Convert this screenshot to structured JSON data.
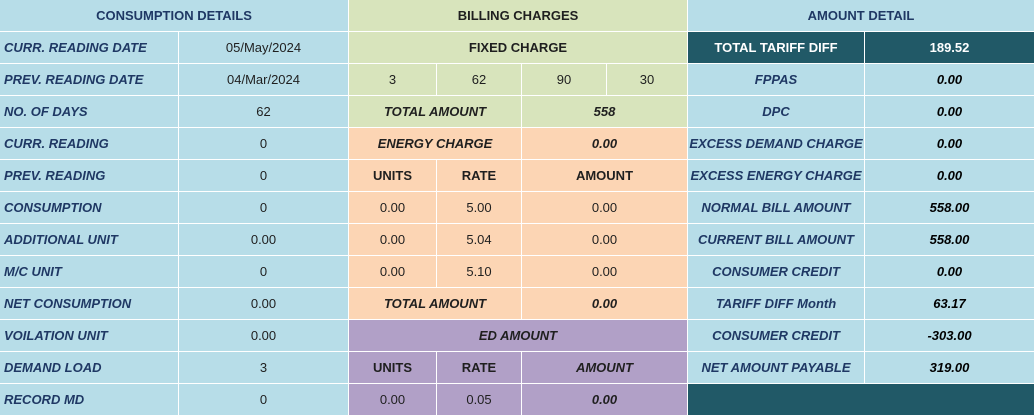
{
  "consumption": {
    "header": "CONSUMPTION DETAILS",
    "rows": [
      {
        "label": "CURR. READING DATE",
        "value": "05/May/2024"
      },
      {
        "label": "PREV. READING DATE",
        "value": "04/Mar/2024"
      },
      {
        "label": "NO. OF DAYS",
        "value": "62"
      },
      {
        "label": "CURR. READING",
        "value": "0"
      },
      {
        "label": "PREV. READING",
        "value": "0"
      },
      {
        "label": "CONSUMPTION",
        "value": "0"
      },
      {
        "label": "ADDITIONAL UNIT",
        "value": "0.00"
      },
      {
        "label": "M/C UNIT",
        "value": "0"
      },
      {
        "label": "NET CONSUMPTION",
        "value": "0.00"
      },
      {
        "label": "VOILATION UNIT",
        "value": "0.00"
      },
      {
        "label": "DEMAND LOAD",
        "value": "3"
      },
      {
        "label": "RECORD MD",
        "value": "0"
      }
    ]
  },
  "billing": {
    "header": "BILLING CHARGES",
    "fixed_charge_label": "FIXED CHARGE",
    "fixed_values": [
      "3",
      "62",
      "90",
      "30"
    ],
    "fixed_total_label": "TOTAL AMOUNT",
    "fixed_total_value": "558",
    "energy_charge_label": "ENERGY CHARGE",
    "energy_charge_value": "0.00",
    "energy_headers": {
      "units": "UNITS",
      "rate": "RATE",
      "amount": "AMOUNT"
    },
    "energy_rows": [
      {
        "units": "0.00",
        "rate": "5.00",
        "amount": "0.00"
      },
      {
        "units": "0.00",
        "rate": "5.04",
        "amount": "0.00"
      },
      {
        "units": "0.00",
        "rate": "5.10",
        "amount": "0.00"
      }
    ],
    "energy_total_label": "TOTAL AMOUNT",
    "energy_total_value": "0.00",
    "ed_amount_label": "ED AMOUNT",
    "ed_headers": {
      "units": "UNITS",
      "rate": "RATE",
      "amount": "AMOUNT"
    },
    "ed_row": {
      "units": "0.00",
      "rate": "0.05",
      "amount": "0.00"
    }
  },
  "amount": {
    "header": "AMOUNT DETAIL",
    "rows": [
      {
        "label": "TOTAL TARIFF DIFF",
        "value": "189.52"
      },
      {
        "label": "FPPAS",
        "value": "0.00"
      },
      {
        "label": "DPC",
        "value": "0.00"
      },
      {
        "label": "EXCESS DEMAND CHARGE",
        "value": "0.00"
      },
      {
        "label": "EXCESS ENERGY CHARGE",
        "value": "0.00"
      },
      {
        "label": "NORMAL BILL AMOUNT",
        "value": "558.00"
      },
      {
        "label": "CURRENT BILL AMOUNT",
        "value": "558.00"
      },
      {
        "label": "CONSUMER CREDIT",
        "value": "0.00"
      },
      {
        "label": "TARIFF DIFF Month",
        "value": "63.17"
      },
      {
        "label": "CONSUMER CREDIT",
        "value": "-303.00"
      },
      {
        "label": "NET AMOUNT PAYABLE",
        "value": "319.00"
      }
    ]
  },
  "colors": {
    "blue": "#b7dde8",
    "green": "#d8e4bc",
    "peach": "#fcd5b4",
    "purple": "#b1a0c7",
    "teal": "#215967",
    "navy_text": "#1f3864"
  }
}
